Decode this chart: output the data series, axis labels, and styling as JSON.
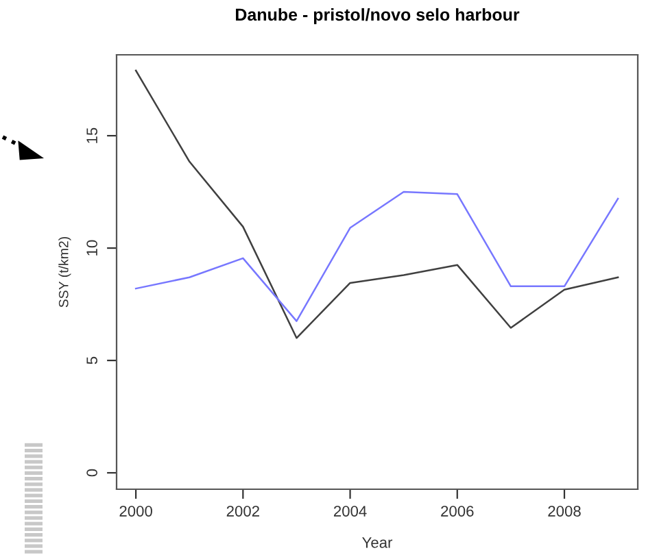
{
  "chart_data": {
    "type": "line",
    "title": "Danube - pristol/novo selo harbour",
    "xlabel": "Year",
    "ylabel": "SSY (t/km2)",
    "x": [
      2000,
      2001,
      2002,
      2003,
      2004,
      2005,
      2006,
      2007,
      2008,
      2009
    ],
    "series": [
      {
        "color": "#404040",
        "values": [
          17.9,
          13.85,
          10.95,
          6.0,
          8.45,
          8.8,
          9.25,
          6.45,
          8.15,
          8.7
        ]
      },
      {
        "color": "#7777ff",
        "values": [
          8.2,
          8.7,
          9.55,
          6.75,
          10.9,
          12.5,
          12.4,
          8.3,
          8.3,
          12.2
        ]
      }
    ],
    "xlim": [
      1999.64,
      2009.37
    ],
    "xticks": [
      2000,
      2002,
      2004,
      2006,
      2008
    ],
    "ylim": [
      -0.73,
      18.6
    ],
    "yticks": [
      0,
      5,
      10,
      15
    ],
    "grid": false,
    "legend": false,
    "marker": "none",
    "line_style": "solid"
  }
}
